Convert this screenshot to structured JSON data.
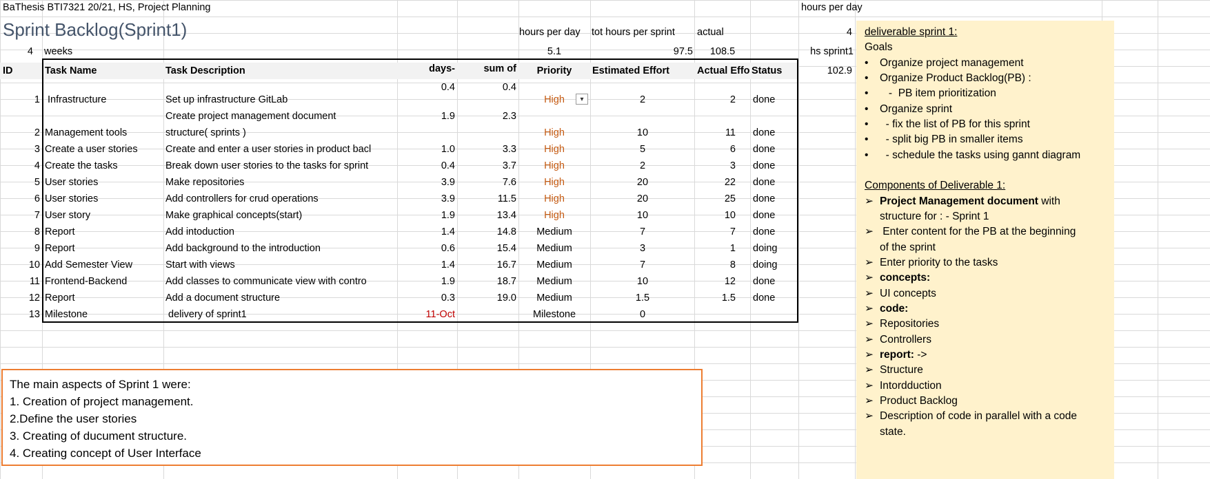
{
  "header": {
    "doc_title": "BaThesis BTI7321 20/21, HS, Project Planning",
    "hours_per_day_label": "hours per day",
    "sheet_title": "Sprint Backlog(Sprint1)",
    "weeks_value": "4",
    "weeks_label": "weeks"
  },
  "summary": {
    "hpd_label": "hours per day",
    "hpd_value": "5.1",
    "tot_label": "tot hours per sprint",
    "tot_value": "97.5",
    "actual_label": "actual",
    "actual_value": "108.5",
    "right_hpd_value": "4",
    "hs_sprint_label": "hs sprint1",
    "hs_sprint_value": "102.9"
  },
  "table": {
    "columns": {
      "id": "ID",
      "task_name": "Task Name",
      "task_desc": "Task Description",
      "days": "days-",
      "sum": "sum of",
      "priority": "Priority",
      "estimated": "Estimated Effort",
      "actual": "Actual Effo",
      "status": "Status"
    },
    "rows": [
      {
        "days": "0.4",
        "sum": "0.4",
        "id": "1",
        "name": "Infrastructure",
        "desc": "Set up infrastructure GitLab",
        "priority": "High",
        "est": "2",
        "act": "2",
        "status": "done"
      },
      {
        "days": "1.9",
        "sum": "2.3",
        "desc_line1": "Create project management document",
        "id": "2",
        "name": "Management tools",
        "desc": "structure( sprints )",
        "priority": "High",
        "est": "10",
        "act": "11",
        "status": "done"
      },
      {
        "id": "3",
        "name": "Create a user stories",
        "desc": "Create and enter a user stories in product bacl",
        "days": "1.0",
        "sum": "3.3",
        "priority": "High",
        "est": "5",
        "act": "6",
        "status": "done"
      },
      {
        "id": "4",
        "name": "Create the tasks",
        "desc": "Break down user stories to the tasks for sprint",
        "days": "0.4",
        "sum": "3.7",
        "priority": "High",
        "est": "2",
        "act": "3",
        "status": "done"
      },
      {
        "id": "5",
        "name": "User stories",
        "desc": "Make repositories",
        "days": "3.9",
        "sum": "7.6",
        "priority": "High",
        "est": "20",
        "act": "22",
        "status": "done"
      },
      {
        "id": "6",
        "name": "User stories",
        "desc": "Add controllers for crud operations",
        "days": "3.9",
        "sum": "11.5",
        "priority": "High",
        "est": "20",
        "act": "25",
        "status": "done"
      },
      {
        "id": "7",
        "name": "User story",
        "desc": "Make graphical concepts(start)",
        "days": "1.9",
        "sum": "13.4",
        "priority": "High",
        "est": "10",
        "act": "10",
        "status": "done"
      },
      {
        "id": "8",
        "name": "Report",
        "desc": "Add intoduction",
        "days": "1.4",
        "sum": "14.8",
        "priority": "Medium",
        "est": "7",
        "act": "7",
        "status": "done"
      },
      {
        "id": "9",
        "name": "Report",
        "desc": "Add background to the introduction",
        "days": "0.6",
        "sum": "15.4",
        "priority": "Medium",
        "est": "3",
        "act": "1",
        "status": "doing"
      },
      {
        "id": "10",
        "name": "Add Semester View",
        "desc": "Start with views",
        "days": "1.4",
        "sum": "16.7",
        "priority": "Medium",
        "est": "7",
        "act": "8",
        "status": "doing"
      },
      {
        "id": "11",
        "name": "Frontend-Backend",
        "desc": "Add classes to communicate view with contro",
        "days": "1.9",
        "sum": "18.7",
        "priority": "Medium",
        "est": "10",
        "act": "12",
        "status": "done"
      },
      {
        "id": "12",
        "name": "Report",
        "desc": "Add a document structure",
        "days": "0.3",
        "sum": "19.0",
        "priority": "Medium",
        "est": "1.5",
        "act": "1.5",
        "status": "done"
      },
      {
        "id": "13",
        "name": "Milestone",
        "desc": " delivery of sprint1",
        "days": "11-Oct",
        "sum": "",
        "priority": "Milestone",
        "est": "0",
        "act": "",
        "status": ""
      }
    ]
  },
  "notes": {
    "lines": [
      "The main aspects of Sprint 1 were:",
      "1. Creation of project management.",
      "2.Define the user stories",
      "3. Creating of ducument structure.",
      "4. Creating concept of User Interface"
    ]
  },
  "deliverable": {
    "title": "deliverable sprint 1:",
    "goals_label": "Goals",
    "goals": [
      "Organize project management",
      "Organize Product Backlog(PB) :",
      "   -  PB item prioritization",
      "Organize sprint",
      "  - fix the list of PB for this sprint",
      "  - split big PB in smaller items",
      "  - schedule the tasks using gannt diagram"
    ],
    "components_title": "Components of Deliverable 1:",
    "pm_doc_bold": "Project Management document",
    "pm_doc_rest": " with",
    "pm_doc_line2": "structure for :  - Sprint 1",
    "pb_line1": " Enter content for the PB at the beginning",
    "pb_line2": "of the sprint",
    "priority_line": "Enter priority to the tasks",
    "concepts_label": "concepts:",
    "ui_concepts": "UI concepts",
    "code_label": "code:",
    "repositories": "Repositories",
    "controllers": "Controllers",
    "report_label": "report:",
    "report_arrow": " ->",
    "structure": "Structure",
    "introduction": "Intordduction",
    "product_backlog": "Product Backlog",
    "desc_line1": "Description of code in parallel with a code",
    "desc_line2": "state."
  }
}
